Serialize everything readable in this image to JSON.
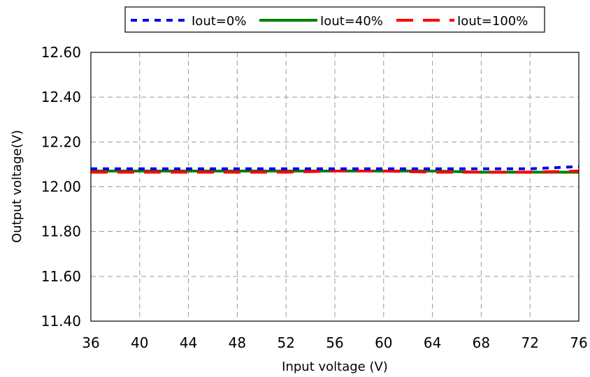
{
  "chart_data": {
    "type": "line",
    "xlabel": "Input voltage (V)",
    "ylabel": "Output voltage(V)",
    "xlim": [
      36,
      76
    ],
    "ylim": [
      11.4,
      12.6
    ],
    "x_ticks": [
      "36",
      "40",
      "44",
      "48",
      "52",
      "56",
      "60",
      "64",
      "68",
      "72",
      "76"
    ],
    "y_ticks": [
      "12.60",
      "12.40",
      "12.20",
      "12.00",
      "11.80",
      "11.60",
      "11.40"
    ],
    "grid": true,
    "legend_position": "top",
    "x": [
      36,
      40,
      44,
      48,
      52,
      56,
      60,
      64,
      68,
      72,
      76
    ],
    "series": [
      {
        "name": "Iout=0%",
        "color": "#0000ee",
        "style": "dotted",
        "values": [
          12.08,
          12.08,
          12.08,
          12.08,
          12.08,
          12.08,
          12.08,
          12.08,
          12.08,
          12.08,
          12.09
        ]
      },
      {
        "name": "Iout=40%",
        "color": "#008000",
        "style": "solid",
        "values": [
          12.07,
          12.07,
          12.07,
          12.07,
          12.07,
          12.07,
          12.07,
          12.07,
          12.065,
          12.065,
          12.065
        ]
      },
      {
        "name": "Iout=100%",
        "color": "#ff0000",
        "style": "dashed",
        "values": [
          12.065,
          12.065,
          12.065,
          12.065,
          12.065,
          12.07,
          12.07,
          12.065,
          12.065,
          12.065,
          12.07
        ]
      }
    ]
  }
}
